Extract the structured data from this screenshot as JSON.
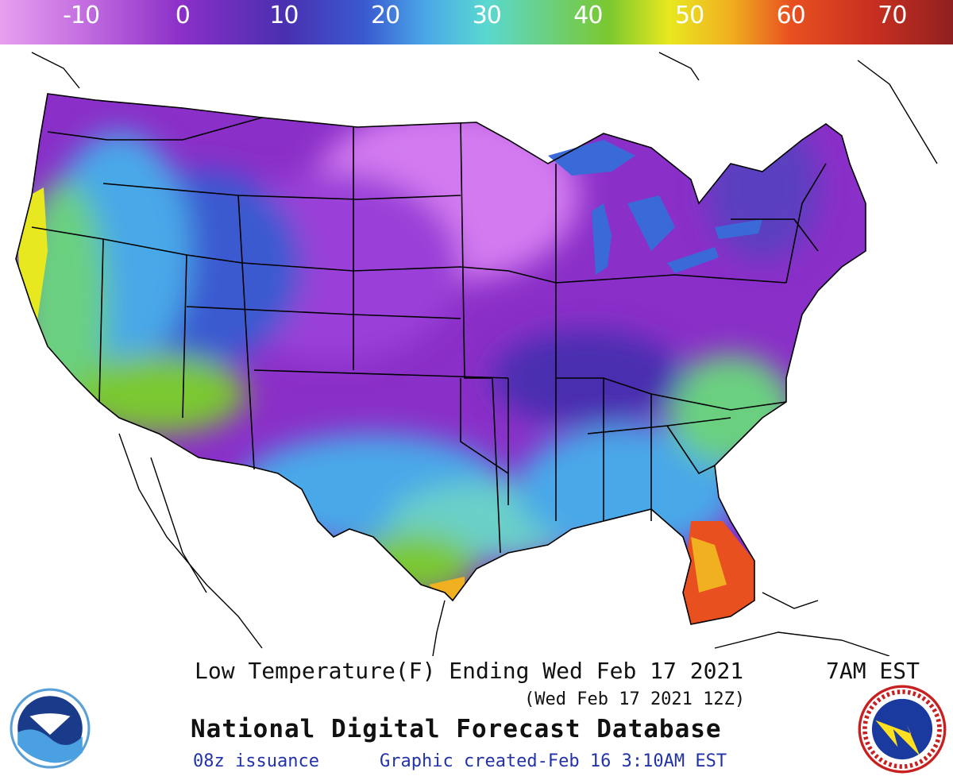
{
  "colorbar": {
    "ticks": [
      {
        "value": -10,
        "label": "-10"
      },
      {
        "value": 0,
        "label": "0"
      },
      {
        "value": 10,
        "label": "10"
      },
      {
        "value": 20,
        "label": "20"
      },
      {
        "value": 30,
        "label": "30"
      },
      {
        "value": 40,
        "label": "40"
      },
      {
        "value": 50,
        "label": "50"
      },
      {
        "value": 60,
        "label": "60"
      },
      {
        "value": 70,
        "label": "70"
      }
    ],
    "stops": [
      {
        "value": -18,
        "color": "#e8a0f0"
      },
      {
        "value": -10,
        "color": "#c46fe0"
      },
      {
        "value": 0,
        "color": "#8a2fc8"
      },
      {
        "value": 10,
        "color": "#4a2fb0"
      },
      {
        "value": 18,
        "color": "#3a5ad0"
      },
      {
        "value": 24,
        "color": "#4aa8e8"
      },
      {
        "value": 30,
        "color": "#5ad8d0"
      },
      {
        "value": 36,
        "color": "#6ad080"
      },
      {
        "value": 42,
        "color": "#7ac830"
      },
      {
        "value": 48,
        "color": "#e8e820"
      },
      {
        "value": 54,
        "color": "#f0b020"
      },
      {
        "value": 60,
        "color": "#e85020"
      },
      {
        "value": 68,
        "color": "#c83020"
      },
      {
        "value": 76,
        "color": "#902020"
      }
    ]
  },
  "map": {
    "region": "Contiguous United States",
    "variable": "Low Temperature (F)"
  },
  "title": {
    "line": "Low Temperature(F) Ending Wed Feb 17 2021",
    "time": "7AM EST",
    "utc": "(Wed Feb 17 2021 12Z)"
  },
  "product": "National Digital Forecast Database",
  "footer": {
    "issuance": "08z issuance",
    "created": "Graphic created-Feb 16  3:10AM EST"
  },
  "logos": {
    "left": "NOAA",
    "right": "NATIONAL WEATHER SERVICE"
  }
}
